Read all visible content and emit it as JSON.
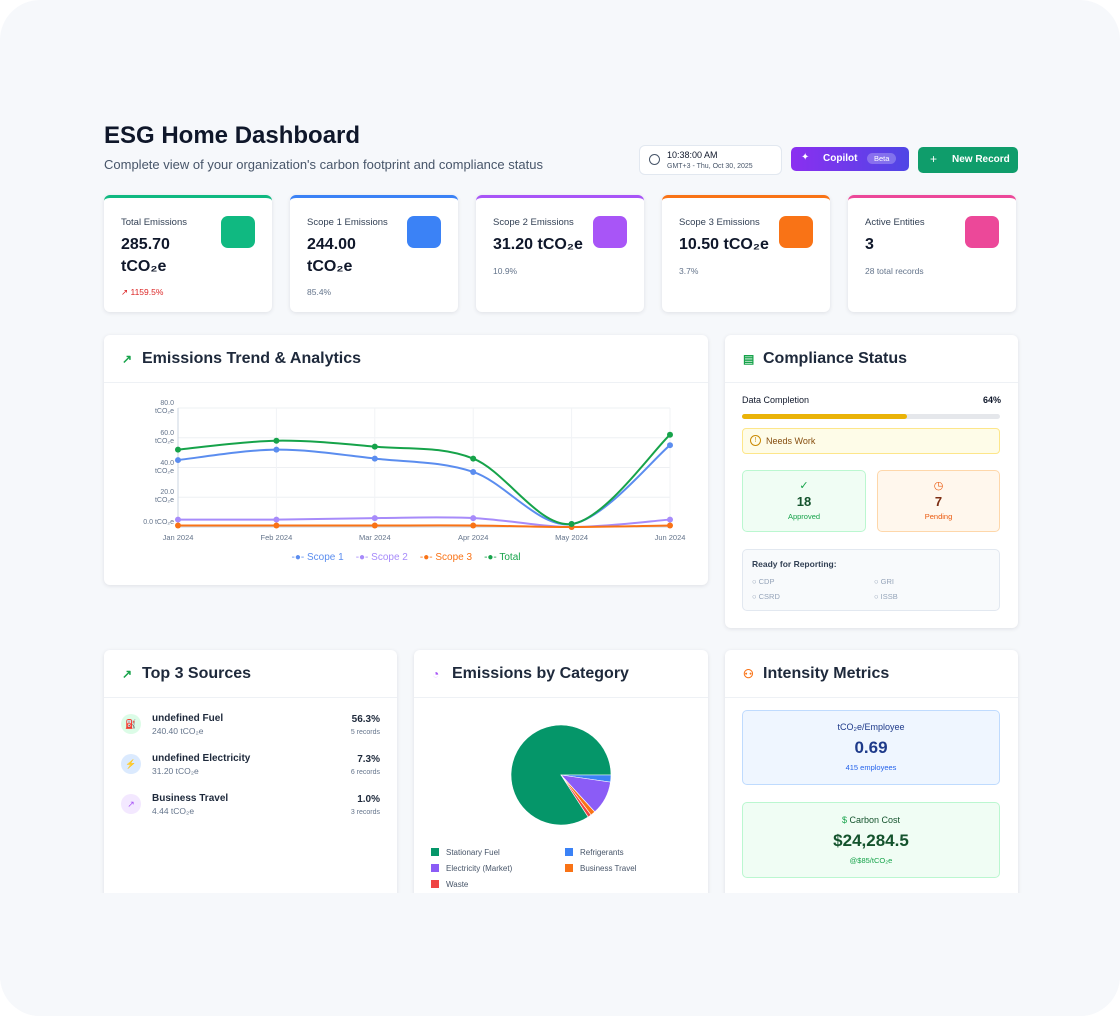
{
  "header": {
    "title": "ESG Home Dashboard",
    "subtitle": "Complete view of your organization's carbon footprint and compliance status",
    "time": "10:38:00 AM",
    "date": "GMT+3 - Thu, Oct 30, 2025",
    "copilot": "Copilot",
    "beta": "Beta",
    "new_record": "New Record"
  },
  "kpis": [
    {
      "label": "Total Emissions",
      "value": "285.70",
      "unit": "tCO₂e",
      "sub": "1159.5%"
    },
    {
      "label": "Scope 1 Emissions",
      "value": "244.00",
      "unit": "tCO₂e",
      "sub": "85.4%"
    },
    {
      "label": "Scope 2 Emissions",
      "value": "31.20",
      "unit": "tCO₂e",
      "sub": "10.9%"
    },
    {
      "label": "Scope 3 Emissions",
      "value": "10.50",
      "unit": "tCO₂e",
      "sub": "3.7%"
    },
    {
      "label": "Active Entities",
      "value": "3",
      "unit": "",
      "sub": "28 total records"
    }
  ],
  "chart_data": [
    {
      "type": "line",
      "title": "Emissions Trend & Analytics",
      "categories": [
        "Jan 2024",
        "Feb 2024",
        "Mar 2024",
        "Apr 2024",
        "May 2024",
        "Jun 2024"
      ],
      "ylim": [
        0,
        80
      ],
      "yticks": [
        {
          "value": 0,
          "label": "0.0 tCO₂e"
        },
        {
          "value": 20,
          "label": "20.0 tCO₂e"
        },
        {
          "value": 40,
          "label": "40.0 tCO₂e"
        },
        {
          "value": 60,
          "label": "60.0 tCO₂e"
        },
        {
          "value": 80,
          "label": "80.0 tCO₂e"
        }
      ],
      "grid": true,
      "legend": "bottom",
      "series": [
        {
          "name": "Scope 1",
          "color": "#5b8def",
          "values": [
            45,
            52,
            46,
            37,
            2,
            55
          ]
        },
        {
          "name": "Scope 2",
          "color": "#a78bfa",
          "values": [
            5,
            5,
            6,
            6,
            0,
            5
          ]
        },
        {
          "name": "Scope 3",
          "color": "#f97316",
          "values": [
            1,
            1,
            1,
            1,
            0,
            1
          ]
        },
        {
          "name": "Total",
          "color": "#16a34a",
          "values": [
            52,
            58,
            54,
            46,
            2,
            62
          ]
        }
      ]
    },
    {
      "type": "pie",
      "title": "Emissions by Category",
      "categories": [
        "Stationary Fuel",
        "Refrigerants",
        "Electricity (Market)",
        "Business Travel",
        "Waste"
      ],
      "values": [
        240.4,
        6.5,
        31.2,
        4.44,
        3.16
      ],
      "colors": [
        "#059669",
        "#3b82f6",
        "#8b5cf6",
        "#f97316",
        "#ef4444"
      ]
    }
  ],
  "compliance": {
    "title": "Compliance Status",
    "completion": {
      "label": "Data Completion",
      "value": 64,
      "value_label": "64%"
    },
    "status": "Needs Work",
    "approved": {
      "value": 18,
      "label": "Approved"
    },
    "pending": {
      "value": 7,
      "label": "Pending"
    },
    "ready": {
      "title": "Ready for Reporting:",
      "frameworks": [
        "CDP",
        "GRI",
        "CSRD",
        "ISSB"
      ]
    }
  },
  "sources": {
    "title": "Top 3 Sources",
    "items": [
      {
        "name": "undefined Fuel",
        "amount": "240.40 tCO₂e",
        "share": "56.3%",
        "records": "5 records"
      },
      {
        "name": "undefined Electricity",
        "amount": "31.20 tCO₂e",
        "share": "7.3%",
        "records": "6 records"
      },
      {
        "name": "Business Travel",
        "amount": "4.44 tCO₂e",
        "share": "1.0%",
        "records": "3 records"
      }
    ]
  },
  "intensity": {
    "title": "Intensity Metrics",
    "per_employee": {
      "label": "tCO₂e/Employee",
      "value": "0.69",
      "sub": "415 employees"
    },
    "carbon_cost": {
      "label": "Carbon Cost",
      "value": "$24,284.5",
      "sub": "@$85/tCO₂e"
    }
  }
}
